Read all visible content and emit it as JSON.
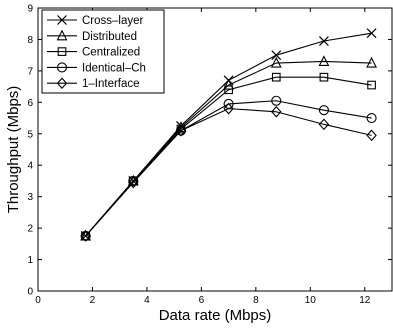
{
  "chart_data": {
    "type": "line",
    "xlabel": "Data rate (Mbps)",
    "ylabel": "Throughput (Mbps)",
    "xlim": [
      0,
      13
    ],
    "ylim": [
      0,
      9
    ],
    "xticks": [
      0,
      2,
      4,
      6,
      8,
      10,
      12
    ],
    "yticks": [
      0,
      1,
      2,
      3,
      4,
      5,
      6,
      7,
      8,
      9
    ],
    "grid": false,
    "legend_position": "top-left",
    "x": [
      1.75,
      3.5,
      5.25,
      7.0,
      8.75,
      10.5,
      12.25
    ],
    "series": [
      {
        "name": "Cross–layer",
        "marker": "x",
        "values": [
          1.75,
          3.5,
          5.25,
          6.7,
          7.5,
          7.95,
          8.2
        ]
      },
      {
        "name": "Distributed",
        "marker": "triangle",
        "values": [
          1.75,
          3.5,
          5.2,
          6.55,
          7.25,
          7.3,
          7.25
        ]
      },
      {
        "name": "Centralized",
        "marker": "square",
        "values": [
          1.75,
          3.5,
          5.15,
          6.4,
          6.8,
          6.8,
          6.55
        ]
      },
      {
        "name": "Identical–Ch",
        "marker": "circle",
        "values": [
          1.75,
          3.5,
          5.1,
          5.95,
          6.05,
          5.75,
          5.5
        ]
      },
      {
        "name": "1–Interface",
        "marker": "diamond",
        "values": [
          1.75,
          3.45,
          5.1,
          5.8,
          5.7,
          5.3,
          4.95
        ]
      }
    ]
  }
}
